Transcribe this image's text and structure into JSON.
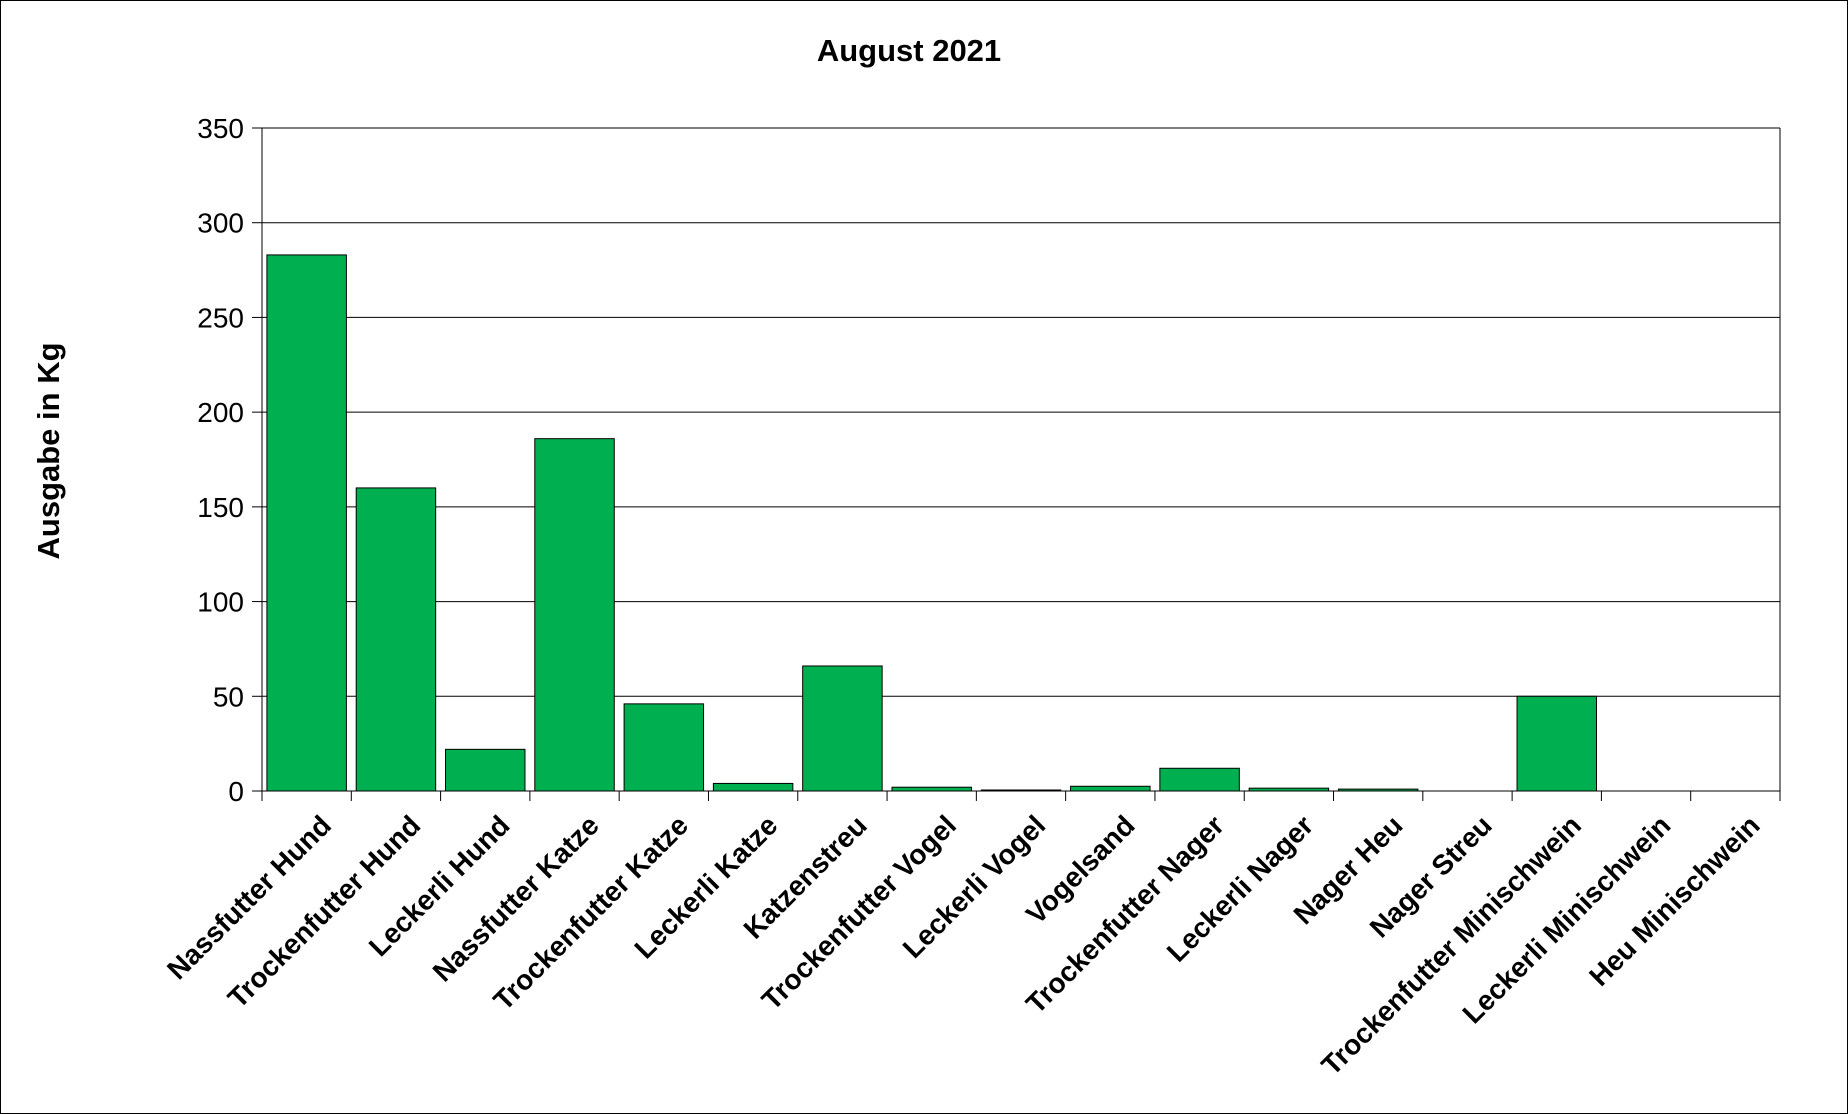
{
  "chart_data": {
    "type": "bar",
    "title": "August 2021",
    "xlabel": "",
    "ylabel": "Ausgabe in Kg",
    "ylim": [
      0,
      350
    ],
    "yticks": [
      0,
      50,
      100,
      150,
      200,
      250,
      300,
      350
    ],
    "grid": true,
    "legend": "none",
    "bar_color": "#00B050",
    "categories": [
      "Nassfutter Hund",
      "Trockenfutter Hund",
      "Leckerli Hund",
      "Nassfutter Katze",
      "Trockenfutter Katze",
      "Leckerli Katze",
      "Katzenstreu",
      "Trockenfutter Vogel",
      "Leckerli Vogel",
      "Vogelsand",
      "Trockenfutter Nager",
      "Leckerli Nager",
      "Nager Heu",
      "Nager Streu",
      "Trockenfutter Minischwein",
      "Leckerli Minischwein",
      "Heu Minischwein"
    ],
    "values": [
      283,
      160,
      22,
      186,
      46,
      4,
      66,
      2,
      0.5,
      2.5,
      12,
      1.5,
      1,
      0,
      50,
      0,
      0
    ]
  }
}
